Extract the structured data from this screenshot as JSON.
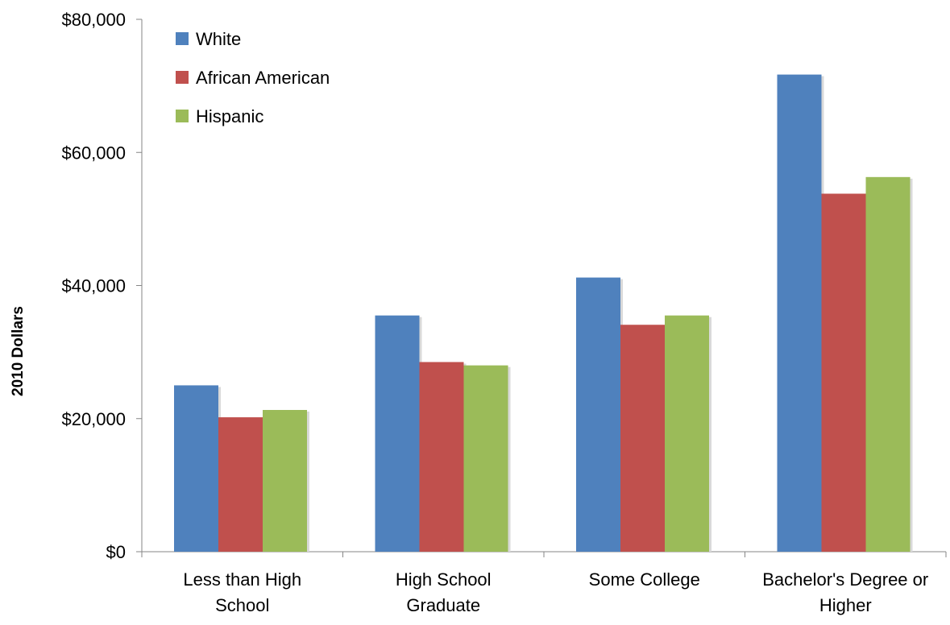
{
  "chart_data": {
    "type": "bar",
    "title": "",
    "xlabel": "",
    "ylabel": "2010 Dollars",
    "ylim": [
      0,
      80000
    ],
    "yticks": [
      0,
      20000,
      40000,
      60000,
      80000
    ],
    "ytick_labels": [
      "$0",
      "$20,000",
      "$40,000",
      "$60,000",
      "$80,000"
    ],
    "categories": [
      [
        "Less than High",
        "School"
      ],
      [
        "High School",
        "Graduate"
      ],
      [
        "Some College"
      ],
      [
        "Bachelor's Degree or",
        "Higher"
      ]
    ],
    "series": [
      {
        "name": "White",
        "color": "#4F81BD",
        "values": [
          25000,
          35500,
          41200,
          71700
        ]
      },
      {
        "name": "African American",
        "color": "#C0504D",
        "values": [
          20200,
          28500,
          34100,
          53800
        ]
      },
      {
        "name": "Hispanic",
        "color": "#9BBB59",
        "values": [
          21300,
          28000,
          35500,
          56300
        ]
      }
    ],
    "grid": false,
    "legend_position": "top-left"
  }
}
